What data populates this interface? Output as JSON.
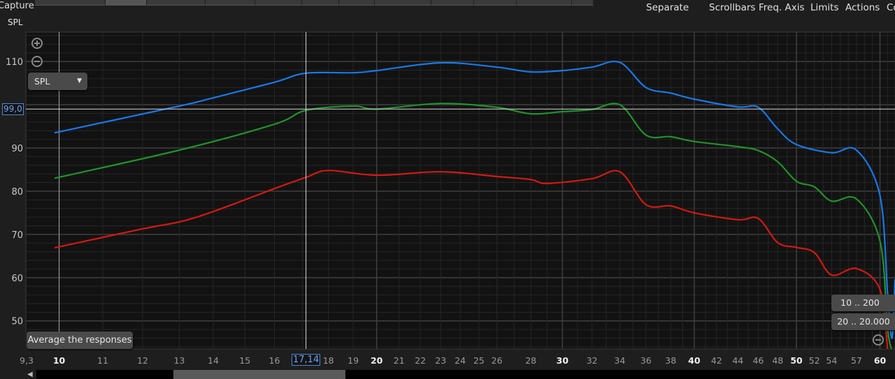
{
  "toolbar": {
    "capture_label": "Capture",
    "menu": [
      "Separate",
      "Scrollbars",
      "Freq. Axis",
      "Limits",
      "Actions",
      "Co"
    ]
  },
  "graph": {
    "axis_title": "SPL",
    "measure_select": "SPL",
    "average_button": "Average the responses",
    "range_buttons": [
      "10 .. 200",
      "20 .. 20.000"
    ],
    "cursor_x_label": "17,14",
    "cursor_y_label": "99,0",
    "icons": [
      "zoom-in-icon",
      "zoom-out-icon",
      "scroll-left-icon"
    ]
  },
  "chart_data": {
    "type": "line",
    "title": "",
    "xlabel": "",
    "ylabel": "SPL",
    "x_scale": "log",
    "xlim": [
      9.3,
      62
    ],
    "ylim": [
      43.5,
      116.8
    ],
    "grid": true,
    "x_ticks": [
      "9,3",
      "10",
      "11",
      "12",
      "13",
      "14",
      "15",
      "16",
      "18",
      "19",
      "20",
      "21",
      "22",
      "23",
      "24",
      "25",
      "26",
      "28",
      "30",
      "32",
      "34",
      "36",
      "38",
      "40",
      "42",
      "44",
      "46",
      "48",
      "50",
      "52",
      "54",
      "57",
      "60"
    ],
    "x_tick_values": [
      9.3,
      10,
      11,
      12,
      13,
      14,
      15,
      16,
      18,
      19,
      20,
      21,
      22,
      23,
      24,
      25,
      26,
      28,
      30,
      32,
      34,
      36,
      38,
      40,
      42,
      44,
      46,
      48,
      50,
      52,
      54,
      57,
      60
    ],
    "x_major_ticks": [
      "10",
      "20",
      "30",
      "40",
      "50",
      "60"
    ],
    "y_ticks": [
      50,
      60,
      70,
      80,
      90,
      110
    ],
    "cursor": {
      "x": 17.14,
      "y": 99.0
    },
    "marker_x": 10,
    "series": [
      {
        "color": "#1a78e6",
        "x": [
          9.9,
          13,
          14,
          16,
          17.14,
          19,
          20,
          23,
          26,
          28,
          30,
          32,
          34,
          36,
          38,
          40,
          44,
          46,
          48,
          50,
          54,
          57,
          60,
          61,
          61.6,
          62
        ],
        "y": [
          93.5,
          99.7,
          101.6,
          105.2,
          107.3,
          107.4,
          107.9,
          109.7,
          108.7,
          107.6,
          107.9,
          108.7,
          109.8,
          104,
          102.7,
          101.3,
          99.5,
          99.4,
          94.4,
          90.8,
          88.9,
          89.5,
          79,
          56.5,
          46,
          59.7
        ]
      },
      {
        "color": "#21922a",
        "x": [
          9.9,
          13,
          16,
          17.14,
          19,
          20,
          23,
          26,
          28,
          30,
          32,
          34,
          36,
          38,
          40,
          44,
          46,
          48,
          50,
          52,
          54,
          57,
          60,
          61,
          61.5
        ],
        "y": [
          83,
          89.5,
          95.5,
          98.7,
          99.7,
          99,
          100.3,
          99.4,
          97.9,
          98.4,
          98.9,
          100,
          93,
          92.6,
          91.5,
          90.3,
          89.4,
          86.8,
          82.3,
          81,
          77.7,
          78.2,
          68.5,
          48.4,
          43.5
        ]
      },
      {
        "color": "#d11a12",
        "x": [
          9.9,
          12,
          13,
          14,
          16,
          17.14,
          18,
          20,
          23,
          26,
          28,
          29,
          32,
          34,
          36,
          38,
          40,
          44,
          46,
          48,
          50,
          52,
          54,
          57,
          60,
          61
        ],
        "y": [
          66.9,
          71.3,
          72.9,
          75.3,
          80.6,
          83.2,
          84.8,
          83.7,
          84.5,
          83.4,
          82.7,
          81.8,
          82.9,
          84.5,
          76.9,
          76.6,
          75,
          73.4,
          73.7,
          68.1,
          67,
          65.8,
          60.6,
          62.1,
          57.3,
          43.5
        ]
      }
    ]
  }
}
